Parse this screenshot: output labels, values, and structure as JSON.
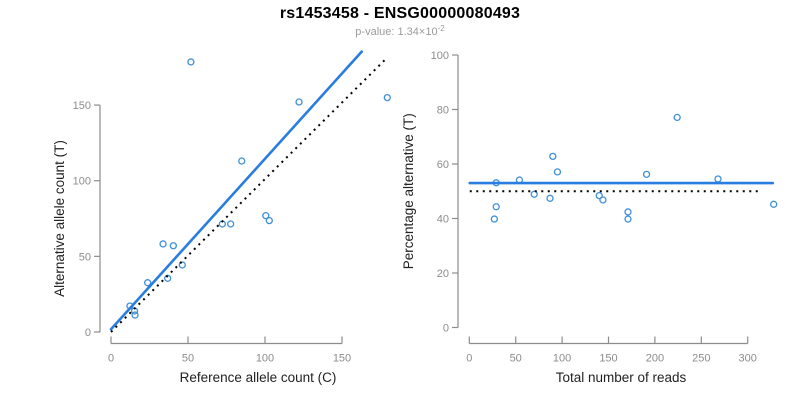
{
  "header": {
    "title": "rs1453458 - ENSG00000080493",
    "pvalue_text": "p-value: 1.34×10",
    "pvalue_exponent": "-2"
  },
  "colors": {
    "fit_line_blue": "#2a7de0",
    "point_blue": "#3f8fd9",
    "dotted_line_black": "#000000",
    "axis_gray": "#8c8c8c",
    "tick_label_gray": "#8c8c8c",
    "axis_title_color": "#222222",
    "title_color": "#000000",
    "subtitle_gray": "#9b9b9b"
  },
  "chart_data": [
    {
      "type": "scatter",
      "name": "allele-counts-scatter",
      "xlabel": "Reference allele count (C)",
      "ylabel": "Alternative allele count (T)",
      "xlim": [
        0,
        181
      ],
      "ylim": [
        0,
        186
      ],
      "xticks": [
        0,
        50,
        100,
        150
      ],
      "yticks": [
        0,
        50,
        100,
        150
      ],
      "grid": false,
      "points": [
        [
          12.3,
          17.2
        ],
        [
          15.3,
          13.9
        ],
        [
          15.6,
          11.2
        ],
        [
          23.8,
          32.6
        ],
        [
          33.8,
          58.2
        ],
        [
          36.8,
          35.5
        ],
        [
          40.5,
          57.0
        ],
        [
          46.3,
          44.3
        ],
        [
          51.9,
          178.5
        ],
        [
          72.3,
          71.4
        ],
        [
          77.7,
          71.4
        ],
        [
          84.9,
          113.0
        ],
        [
          100.5,
          76.9
        ],
        [
          102.8,
          73.6
        ],
        [
          122.1,
          152.0
        ],
        [
          179.4,
          154.9
        ]
      ],
      "lines": [
        {
          "name": "fitted-proportion-line",
          "style": "solid",
          "color": "#2a7de0",
          "x1": 0,
          "y1": 1.8,
          "x2": 162.8,
          "y2": 185.3
        },
        {
          "name": "identity-line",
          "style": "dotted",
          "color": "#000000",
          "x1": 0,
          "y1": 0,
          "x2": 178,
          "y2": 180
        }
      ]
    },
    {
      "type": "scatter",
      "name": "percentage-vs-coverage-scatter",
      "xlabel": "Total number of reads",
      "ylabel": "Percentage alternative (T)",
      "xlim": [
        0,
        335
      ],
      "ylim": [
        0,
        100
      ],
      "xticks": [
        0,
        50,
        100,
        150,
        200,
        250,
        300
      ],
      "yticks": [
        0,
        20,
        40,
        60,
        80,
        100
      ],
      "grid": false,
      "points": [
        [
          29,
          53.1
        ],
        [
          27,
          39.8
        ],
        [
          29,
          44.3
        ],
        [
          54,
          54.1
        ],
        [
          70,
          48.9
        ],
        [
          87,
          47.4
        ],
        [
          90,
          62.8
        ],
        [
          95,
          57.1
        ],
        [
          140,
          48.4
        ],
        [
          144,
          46.8
        ],
        [
          171,
          42.4
        ],
        [
          171,
          39.8
        ],
        [
          191,
          56.2
        ],
        [
          224,
          77.1
        ],
        [
          268,
          54.5
        ],
        [
          328,
          45.2
        ]
      ],
      "lines": [
        {
          "name": "fitted-percentage-line",
          "style": "solid",
          "color": "#2a7de0",
          "x1": 0.5,
          "y1": 53,
          "x2": 327,
          "y2": 53
        },
        {
          "name": "expected-50pct-line",
          "style": "dotted",
          "color": "#000000",
          "x1": 0.5,
          "y1": 50,
          "x2": 315,
          "y2": 50
        }
      ]
    }
  ]
}
